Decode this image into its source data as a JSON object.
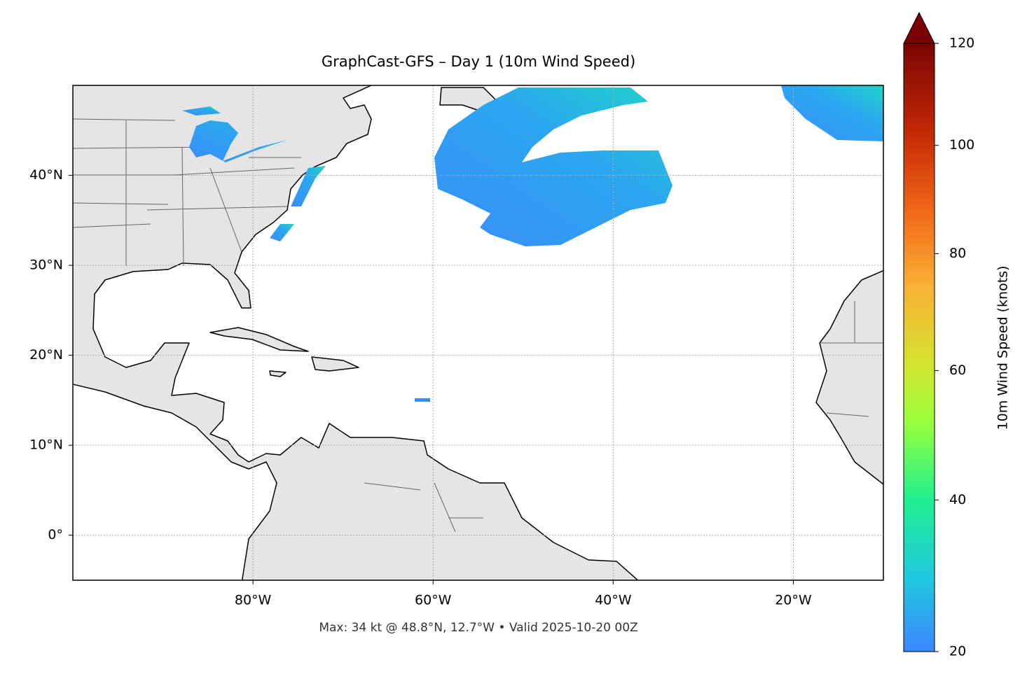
{
  "chart_data": {
    "type": "map",
    "title": "GraphCast-GFS – Day 1 (10m Wind Speed)",
    "footer": "Max: 34 kt @ 48.8°N, 12.7°W • Valid 2025-10-20 00Z",
    "xlim": [
      -100,
      -10
    ],
    "ylim": [
      -5,
      50
    ],
    "xticks": [
      {
        "value": -80,
        "label": "80°W"
      },
      {
        "value": -60,
        "label": "60°W"
      },
      {
        "value": -40,
        "label": "40°W"
      },
      {
        "value": -20,
        "label": "20°W"
      }
    ],
    "yticks": [
      {
        "value": 0,
        "label": "0°"
      },
      {
        "value": 10,
        "label": "10°N"
      },
      {
        "value": 20,
        "label": "20°N"
      },
      {
        "value": 30,
        "label": "30°N"
      },
      {
        "value": 40,
        "label": "40°N"
      }
    ],
    "grid": true,
    "colorbar": {
      "label": "10m Wind Speed (knots)",
      "lim": [
        20,
        120
      ],
      "ticks": [
        20,
        40,
        60,
        80,
        100,
        120
      ],
      "scale": "power",
      "gamma": 0.7,
      "extend": "max"
    }
  }
}
